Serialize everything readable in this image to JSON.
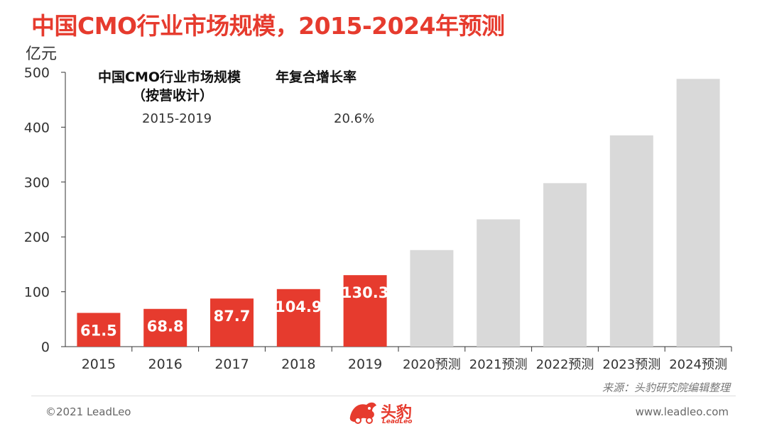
{
  "title": "中国CMO行业市场规模，2015-2024年预测",
  "unit_label": "亿元",
  "legend": {
    "metric_line1": "中国CMO行业市场规模",
    "metric_line2": "（按营收计）",
    "cagr_header": "年复合增长率",
    "period": "2015-2019",
    "cagr_value": "20.6%"
  },
  "chart_data": {
    "type": "bar",
    "categories": [
      "2015",
      "2016",
      "2017",
      "2018",
      "2019",
      "2020预测",
      "2021预测",
      "2022预测",
      "2023预测",
      "2024预测"
    ],
    "values": [
      61.5,
      68.8,
      87.7,
      104.9,
      130.3,
      176,
      232,
      298,
      385,
      488
    ],
    "data_labels": [
      "61.5",
      "68.8",
      "87.7",
      "104.9",
      "130.3",
      "",
      "",
      "",
      "",
      ""
    ],
    "ylabel": "亿元",
    "ylim": [
      0,
      500
    ],
    "yticks": [
      0,
      100,
      200,
      300,
      400,
      500
    ],
    "grid": false,
    "colors": {
      "actual": "#e63b2e",
      "forecast": "#d9d9d9",
      "label": "#ffffff"
    }
  },
  "source": "来源：头豹研究院编辑整理",
  "footer": {
    "copyright": "©2021 LeadLeo",
    "website": "www.leadleo.com",
    "logo_name": "头豹",
    "logo_sub": "LeadLeo"
  }
}
